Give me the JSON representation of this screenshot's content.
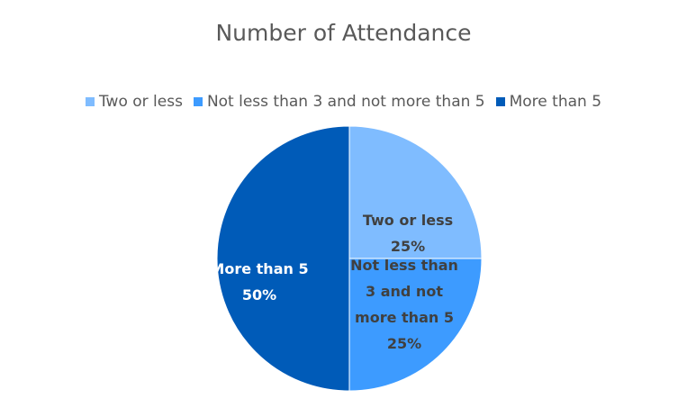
{
  "chart_data": {
    "type": "pie",
    "title": "Number of Attendance",
    "legend_position": "top",
    "categories": [
      "Two or less",
      "Not less than 3 and not more than 5",
      "More than 5"
    ],
    "values": [
      25,
      25,
      50
    ],
    "percent_labels": [
      "25%",
      "25%",
      "50%"
    ],
    "data_label_lines": [
      [
        "Two or less"
      ],
      [
        "Not less than",
        "3 and not",
        "more than 5"
      ],
      [
        "More than 5"
      ]
    ],
    "colors": [
      "#7fbcff",
      "#3d9bff",
      "#005bb8"
    ],
    "label_colors": [
      "#404040",
      "#404040",
      "#ffffff"
    ]
  }
}
